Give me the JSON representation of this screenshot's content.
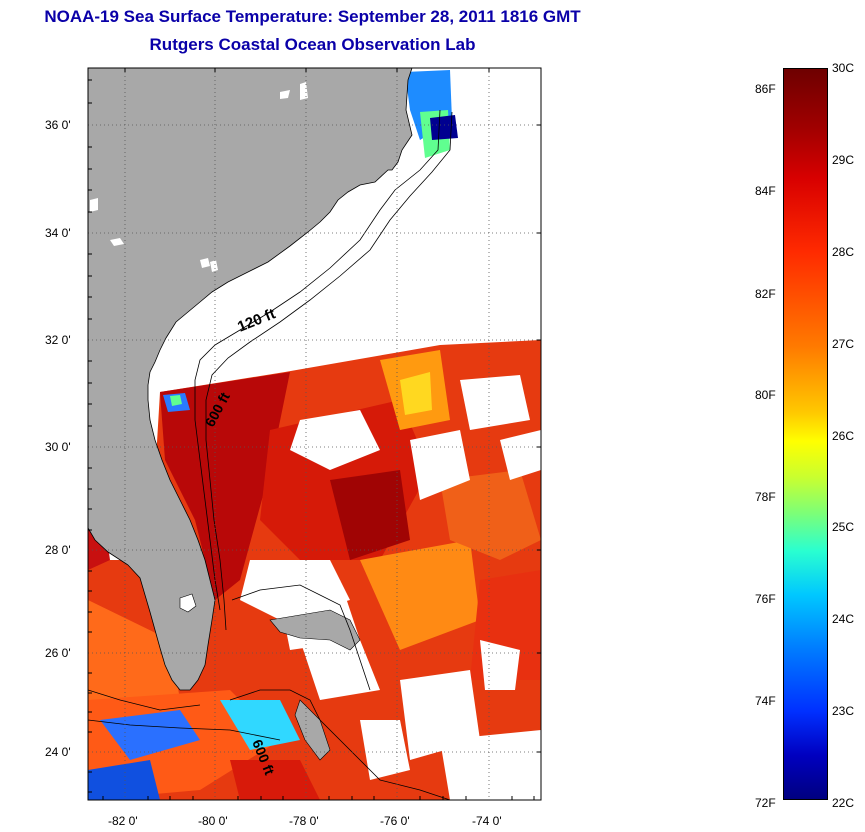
{
  "title": {
    "line1": "NOAA-19 Sea Surface Temperature:  September 28, 2011 1816 GMT",
    "line2": "Rutgers Coastal Ocean Observation Lab"
  },
  "map": {
    "latitude_ticks": [
      "36 0'",
      "34 0'",
      "32 0'",
      "30 0'",
      "28 0'",
      "26 0'",
      "24 0'"
    ],
    "longitude_ticks": [
      "-82 0'",
      "-80 0'",
      "-78 0'",
      "-76 0'",
      "-74 0'"
    ],
    "depth_labels": [
      "120 ft",
      "600 ft",
      "600 ft"
    ],
    "colors": {
      "land": "#a8a8a8",
      "no_data": "#ffffff",
      "frame": "#000000"
    }
  },
  "colorbar": {
    "fahrenheit_labels": [
      "86F",
      "84F",
      "82F",
      "80F",
      "78F",
      "76F",
      "74F",
      "72F"
    ],
    "celsius_labels": [
      "30C",
      "29C",
      "28C",
      "27C",
      "26C",
      "25C",
      "24C",
      "23C",
      "22C"
    ],
    "range_c": [
      22,
      30
    ],
    "range_f": [
      72,
      86
    ]
  }
}
